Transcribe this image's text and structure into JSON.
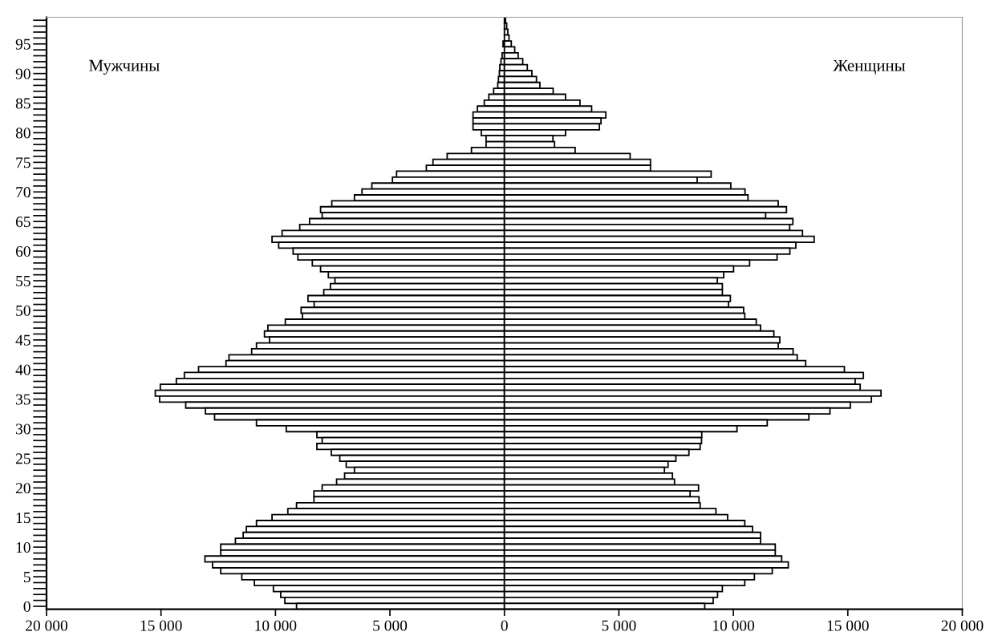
{
  "chart_data": {
    "type": "bar",
    "orientation": "horizontal",
    "categories": [
      null,
      null,
      null,
      null,
      "95",
      null,
      null,
      null,
      null,
      "90",
      null,
      null,
      null,
      null,
      "85",
      null,
      null,
      null,
      null,
      "80",
      null,
      null,
      null,
      null,
      "75",
      null,
      null,
      null,
      null,
      "70",
      null,
      null,
      null,
      null,
      "65",
      null,
      null,
      null,
      null,
      "60",
      null,
      null,
      null,
      null,
      "55",
      null,
      null,
      null,
      null,
      "50",
      null,
      null,
      null,
      null,
      "45",
      null,
      null,
      null,
      null,
      "40",
      null,
      null,
      null,
      null,
      "35",
      null,
      null,
      null,
      null,
      "30",
      null,
      null,
      null,
      null,
      "25",
      null,
      null,
      null,
      null,
      "20",
      null,
      null,
      null,
      null,
      "15",
      null,
      null,
      null,
      null,
      "10",
      null,
      null,
      null,
      null,
      "5",
      null,
      null,
      null,
      null,
      "0"
    ],
    "series": [
      {
        "color": "#ffffff",
        "values": [
          null,
          null,
          null,
          null,
          -60,
          null,
          -100,
          -150,
          -200,
          -220,
          -260,
          -290,
          -470,
          -680,
          -880,
          -1180,
          -1370,
          -1370,
          -1370,
          -1010,
          -800,
          -800,
          -1440,
          -2500,
          -3120,
          -3410,
          -4710,
          -4890,
          -5790,
          -6220,
          -6550,
          -7540,
          -8030,
          -7960,
          -8510,
          -8940,
          -9710,
          -10150,
          -9860,
          -9230,
          -9020,
          -8390,
          -8030,
          -7690,
          -7400,
          -7600,
          -7890,
          -8580,
          -8310,
          -8880,
          -8820,
          -9570,
          -10330,
          -10480,
          -10260,
          -10830,
          -11040,
          -12030,
          -12160,
          -13360,
          -13980,
          -14330,
          -15030,
          -15250,
          -15060,
          -13920,
          -13060,
          -12660,
          -10830,
          -9530,
          -8190,
          -7960,
          -8190,
          -7560,
          -7190,
          -6910,
          -6550,
          -6980,
          -7330,
          -7960,
          -8320,
          -8320,
          -9080,
          -9460,
          -10150,
          -10830,
          -11270,
          -11410,
          -11750,
          -12390,
          -12390,
          -13080,
          -12750,
          -12390,
          -11470,
          -10920,
          -10090,
          -9770,
          -9590,
          -9080
        ]
      },
      {
        "color": "#ffffff",
        "values": [
          50,
          100,
          150,
          200,
          300,
          450,
          600,
          800,
          1000,
          1200,
          1400,
          1550,
          2130,
          2670,
          3300,
          3810,
          4430,
          4220,
          4150,
          2670,
          2120,
          2190,
          3090,
          5490,
          6380,
          6380,
          9030,
          8420,
          9890,
          10510,
          10640,
          11960,
          12320,
          11410,
          12600,
          12460,
          13020,
          13530,
          12730,
          12470,
          11910,
          10710,
          10010,
          9580,
          9300,
          9520,
          9520,
          9870,
          9790,
          10450,
          10500,
          11000,
          11190,
          11770,
          12030,
          11960,
          12610,
          12790,
          13160,
          14850,
          15680,
          15320,
          15540,
          16450,
          16030,
          15110,
          14220,
          13300,
          11480,
          10160,
          8620,
          8610,
          8550,
          8060,
          7490,
          7150,
          6990,
          7340,
          7430,
          8480,
          8110,
          8500,
          8550,
          9240,
          9750,
          10500,
          10840,
          11190,
          11190,
          11830,
          11830,
          12110,
          12400,
          11700,
          10920,
          10500,
          9520,
          9310,
          9120,
          8750
        ]
      }
    ],
    "xlim": [
      -20000,
      20000
    ],
    "xticks": [
      {
        "value": -20000,
        "label": "20 000"
      },
      {
        "value": -15000,
        "label": "15 000"
      },
      {
        "value": -10000,
        "label": "10 000"
      },
      {
        "value": -5000,
        "label": "5 000"
      },
      0,
      {
        "value": 5000,
        "label": "5 000"
      },
      {
        "value": 10000,
        "label": "10 000"
      },
      {
        "value": 15000,
        "label": "15 000"
      },
      {
        "value": 20000,
        "label": "20 000"
      }
    ],
    "annotations": [
      "Мужчины",
      "Женщины"
    ],
    "stacked": true,
    "grid": false,
    "legend": false
  }
}
